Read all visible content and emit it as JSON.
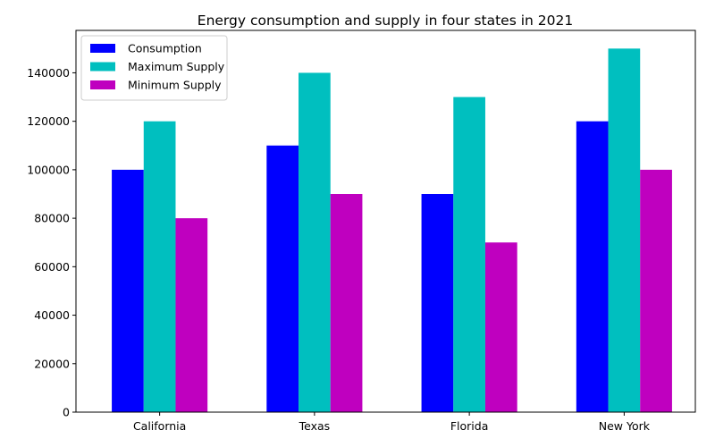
{
  "chart_data": {
    "type": "bar",
    "title": "Energy consumption and supply in four states in 2021",
    "xlabel": "",
    "ylabel": "",
    "categories": [
      "California",
      "Texas",
      "Florida",
      "New York"
    ],
    "series": [
      {
        "name": "Consumption",
        "color": "#0000ff",
        "values": [
          100000,
          110000,
          90000,
          120000
        ]
      },
      {
        "name": "Maximum Supply",
        "color": "#00bfbf",
        "values": [
          120000,
          140000,
          130000,
          150000
        ]
      },
      {
        "name": "Minimum Supply",
        "color": "#bf00bf",
        "values": [
          80000,
          90000,
          70000,
          100000
        ]
      }
    ],
    "yticks": [
      0,
      20000,
      40000,
      60000,
      80000,
      100000,
      120000,
      140000
    ],
    "ylim": [
      0,
      157500
    ],
    "grid": false,
    "legend_position": "top-left"
  }
}
